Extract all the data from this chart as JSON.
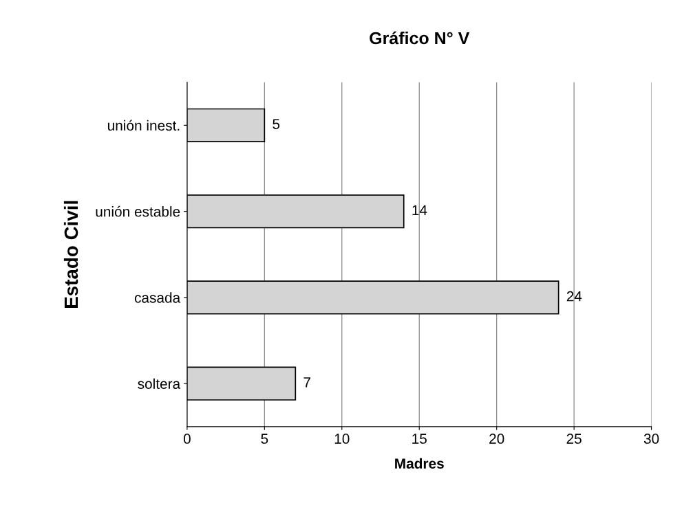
{
  "chart_data": {
    "type": "bar",
    "orientation": "horizontal",
    "title": "Gráfico N° V",
    "xlabel": "Madres",
    "ylabel": "Estado Civil",
    "categories": [
      "unión inest.",
      "unión estable",
      "casada",
      "soltera"
    ],
    "values": [
      5,
      14,
      24,
      7
    ],
    "color": "#d4d4d4",
    "xlim": [
      0,
      30
    ],
    "xticks": [
      0,
      5,
      10,
      15,
      20,
      25,
      30
    ],
    "grid": "x",
    "data_labels": true,
    "legend": false
  }
}
